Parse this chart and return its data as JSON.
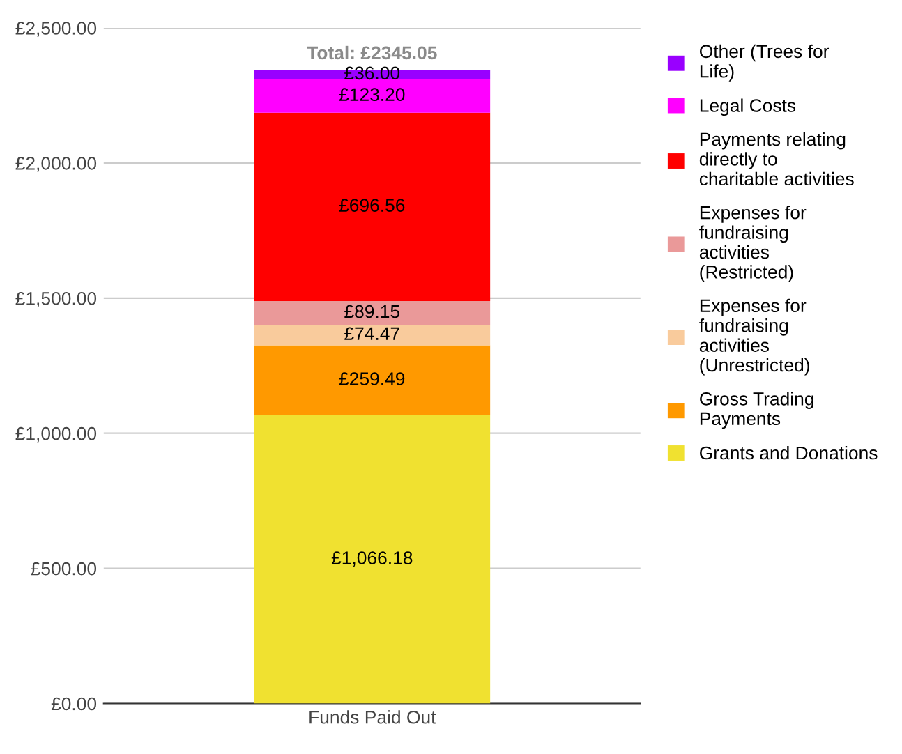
{
  "chart_data": {
    "type": "bar",
    "stacked": true,
    "categories": [
      "Funds Paid Out"
    ],
    "series": [
      {
        "name": "Grants and Donations",
        "color": "#f0e130",
        "values": [
          1066.18
        ],
        "value_labels": [
          "£1,066.18"
        ]
      },
      {
        "name": "Gross Trading Payments",
        "color": "#ff9900",
        "values": [
          259.49
        ],
        "value_labels": [
          "£259.49"
        ]
      },
      {
        "name": "Expenses for fundraising activities (Unrestricted)",
        "color": "#f9cb9c",
        "values": [
          74.47
        ],
        "value_labels": [
          "£74.47"
        ]
      },
      {
        "name": "Expenses for fundraising activities (Restricted)",
        "color": "#ea9999",
        "values": [
          89.15
        ],
        "value_labels": [
          "£89.15"
        ]
      },
      {
        "name": "Payments relating directly to charitable activities",
        "color": "#ff0000",
        "values": [
          696.56
        ],
        "value_labels": [
          "£696.56"
        ]
      },
      {
        "name": "Legal Costs",
        "color": "#ff00ff",
        "values": [
          123.2
        ],
        "value_labels": [
          "£123.20"
        ]
      },
      {
        "name": "Other (Trees for Life)",
        "color": "#9900ff",
        "values": [
          36.0
        ],
        "value_labels": [
          "£36.00"
        ]
      }
    ],
    "totals": [
      "Total: £2345.05"
    ],
    "ylim": [
      0,
      2500
    ],
    "yticks": [
      {
        "value": 0,
        "label": "£0.00"
      },
      {
        "value": 500,
        "label": "£500.00"
      },
      {
        "value": 1000,
        "label": "£1,000.00"
      },
      {
        "value": 1500,
        "label": "£1,500.00"
      },
      {
        "value": 2000,
        "label": "£2,000.00"
      },
      {
        "value": 2500,
        "label": "£2,500.00"
      }
    ],
    "grid": "y",
    "legend": "right"
  }
}
